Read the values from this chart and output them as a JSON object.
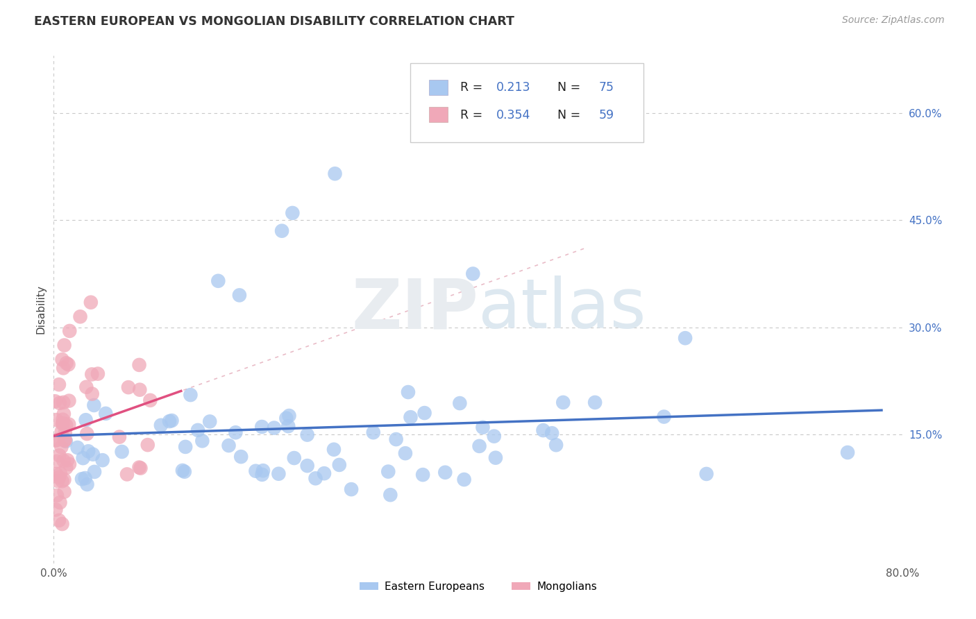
{
  "title": "EASTERN EUROPEAN VS MONGOLIAN DISABILITY CORRELATION CHART",
  "source": "Source: ZipAtlas.com",
  "ylabel": "Disability",
  "xlim": [
    0.0,
    0.8
  ],
  "ylim": [
    -0.03,
    0.68
  ],
  "xticks": [
    0.0,
    0.8
  ],
  "xticklabels": [
    "0.0%",
    "80.0%"
  ],
  "yticks_right": [
    0.15,
    0.3,
    0.45,
    0.6
  ],
  "yticklabels_right": [
    "15.0%",
    "30.0%",
    "45.0%",
    "60.0%"
  ],
  "grid_color": "#c8c8c8",
  "background_color": "#ffffff",
  "eastern_european_color": "#a8c8f0",
  "mongolian_color": "#f0a8b8",
  "eastern_european_line_color": "#4472c4",
  "mongolian_line_color": "#e05080",
  "R_eastern": 0.213,
  "N_eastern": 75,
  "R_mongolian": 0.354,
  "N_mongolian": 59,
  "watermark_zip": "ZIP",
  "watermark_atlas": "atlas",
  "legend_label_eastern": "Eastern Europeans",
  "legend_label_mongolian": "Mongolians",
  "right_tick_color": "#4472c4",
  "title_color": "#333333",
  "source_color": "#999999"
}
